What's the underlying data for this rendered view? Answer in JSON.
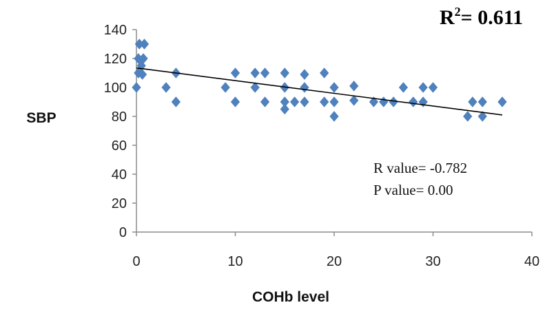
{
  "chart_data": {
    "type": "scatter",
    "xlabel": "COHb level",
    "ylabel": "SBP",
    "xlim": [
      0,
      40
    ],
    "ylim": [
      0,
      140
    ],
    "x_ticks": [
      0,
      10,
      20,
      30,
      40
    ],
    "y_ticks": [
      0,
      20,
      40,
      60,
      80,
      100,
      120,
      140
    ],
    "grid": false,
    "annotations": {
      "r2_label": "R",
      "r2_sup": "2",
      "r2_value": "= 0.611",
      "r_value": "R value= -0.782",
      "p_value": "P value= 0.00"
    },
    "marker_color": "#4f81bd",
    "trendline": {
      "x": [
        0,
        37
      ],
      "y": [
        113.5,
        81
      ]
    },
    "points": [
      {
        "x": 0,
        "y": 100
      },
      {
        "x": 0.2,
        "y": 110
      },
      {
        "x": 0.2,
        "y": 120
      },
      {
        "x": 0.3,
        "y": 130
      },
      {
        "x": 0.5,
        "y": 115
      },
      {
        "x": 0.6,
        "y": 109
      },
      {
        "x": 0.7,
        "y": 120
      },
      {
        "x": 0.8,
        "y": 130
      },
      {
        "x": 3,
        "y": 100
      },
      {
        "x": 4,
        "y": 90
      },
      {
        "x": 4,
        "y": 110
      },
      {
        "x": 9,
        "y": 100
      },
      {
        "x": 10,
        "y": 90
      },
      {
        "x": 10,
        "y": 110
      },
      {
        "x": 12,
        "y": 100
      },
      {
        "x": 12,
        "y": 110
      },
      {
        "x": 13,
        "y": 90
      },
      {
        "x": 13,
        "y": 110
      },
      {
        "x": 15,
        "y": 85
      },
      {
        "x": 15,
        "y": 90
      },
      {
        "x": 15,
        "y": 100
      },
      {
        "x": 15,
        "y": 110
      },
      {
        "x": 16,
        "y": 90
      },
      {
        "x": 17,
        "y": 90
      },
      {
        "x": 17,
        "y": 100
      },
      {
        "x": 17,
        "y": 109
      },
      {
        "x": 19,
        "y": 90
      },
      {
        "x": 19,
        "y": 110
      },
      {
        "x": 20,
        "y": 80
      },
      {
        "x": 20,
        "y": 90
      },
      {
        "x": 20,
        "y": 100
      },
      {
        "x": 22,
        "y": 91
      },
      {
        "x": 22,
        "y": 101
      },
      {
        "x": 24,
        "y": 90
      },
      {
        "x": 25,
        "y": 90
      },
      {
        "x": 26,
        "y": 90
      },
      {
        "x": 27,
        "y": 100
      },
      {
        "x": 28,
        "y": 90
      },
      {
        "x": 29,
        "y": 90
      },
      {
        "x": 29,
        "y": 100
      },
      {
        "x": 30,
        "y": 100
      },
      {
        "x": 33.5,
        "y": 80
      },
      {
        "x": 34,
        "y": 90
      },
      {
        "x": 35,
        "y": 80
      },
      {
        "x": 35,
        "y": 90
      },
      {
        "x": 37,
        "y": 90
      }
    ]
  }
}
